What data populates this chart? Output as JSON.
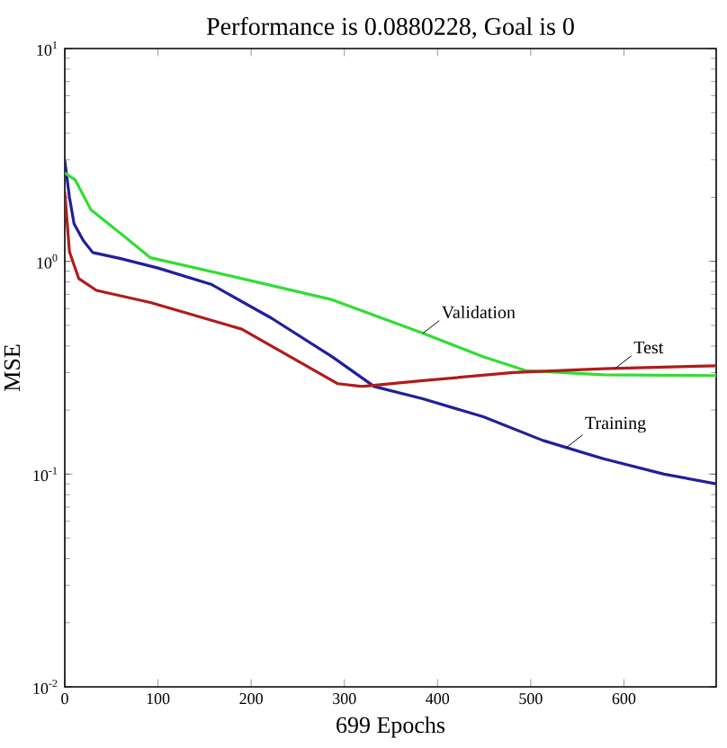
{
  "chart_data": {
    "type": "line",
    "title": "Performance is 0.0880228, Goal is 0",
    "xlabel": "699 Epochs",
    "ylabel": "MSE",
    "log": "y",
    "grid": false,
    "legend": false,
    "marker": "none",
    "line_style": "solid",
    "xlim": [
      0,
      699
    ],
    "xticks": [
      0,
      100,
      200,
      300,
      400,
      500,
      600
    ],
    "ylim": [
      0.01,
      10
    ],
    "yticks": [
      {
        "value": 0.01,
        "label": "10$^{-2}$"
      },
      {
        "value": 0.1,
        "label": "10$^{-1}$"
      },
      {
        "value": 1,
        "label": "10$^{0}$"
      },
      {
        "value": 10,
        "label": "10$^{1}$"
      }
    ],
    "series": [
      {
        "name": "Training",
        "color": "#20209a",
        "x": [
          0,
          5,
          10,
          20,
          30,
          60,
          100,
          157,
          222,
          287,
          332,
          384,
          449,
          513,
          578,
          643,
          699
        ],
        "values": [
          2.98,
          2.0,
          1.5,
          1.25,
          1.1,
          1.03,
          0.93,
          0.78,
          0.54,
          0.356,
          0.258,
          0.226,
          0.186,
          0.144,
          0.118,
          0.1,
          0.09
        ]
      },
      {
        "name": "Validation",
        "color": "#33dd33",
        "x": [
          0,
          11,
          28,
          60,
          92,
          190,
          287,
          384,
          449,
          494,
          578,
          699
        ],
        "values": [
          2.6,
          2.42,
          1.75,
          1.35,
          1.04,
          0.83,
          0.66,
          0.46,
          0.356,
          0.307,
          0.293,
          0.29
        ]
      },
      {
        "name": "Test",
        "color": "#b01c1c",
        "x": [
          0,
          5,
          15,
          34,
          92,
          190,
          293,
          319,
          384,
          481,
          578,
          699
        ],
        "values": [
          2.12,
          1.11,
          0.83,
          0.73,
          0.64,
          0.48,
          0.266,
          0.258,
          0.275,
          0.3,
          0.313,
          0.323
        ]
      }
    ]
  }
}
